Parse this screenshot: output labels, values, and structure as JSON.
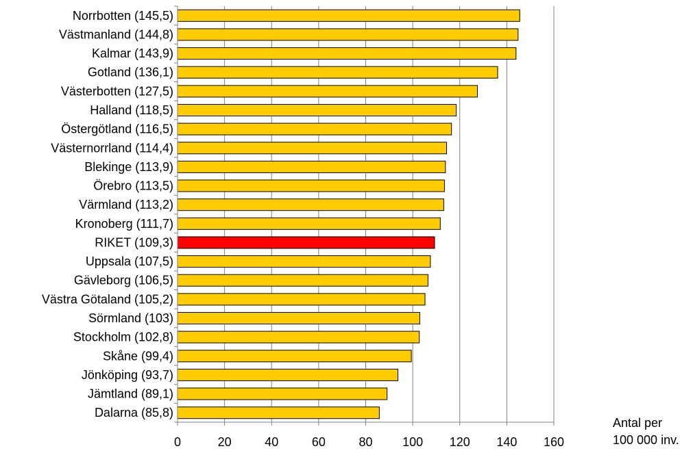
{
  "chart_data": {
    "type": "bar",
    "orientation": "horizontal",
    "categories": [
      "Norrbotten (145,5)",
      "Västmanland (144,8)",
      "Kalmar (143,9)",
      "Gotland (136,1)",
      "Västerbotten (127,5)",
      "Halland (118,5)",
      "Östergötland (116,5)",
      "Västernorrland (114,4)",
      "Blekinge (113,9)",
      "Örebro (113,5)",
      "Värmland (113,2)",
      "Kronoberg (111,7)",
      "RIKET (109,3)",
      "Uppsala (107,5)",
      "Gävleborg (106,5)",
      "Västra Götaland (105,2)",
      "Sörmland (103)",
      "Stockholm (102,8)",
      "Skåne (99,4)",
      "Jönköping (93,7)",
      "Jämtland (89,1)",
      "Dalarna (85,8)"
    ],
    "values": [
      145.5,
      144.8,
      143.9,
      136.1,
      127.5,
      118.5,
      116.5,
      114.4,
      113.9,
      113.5,
      113.2,
      111.7,
      109.3,
      107.5,
      106.5,
      105.2,
      103,
      102.8,
      99.4,
      93.7,
      89.1,
      85.8
    ],
    "highlight_category": "RIKET (109,3)",
    "xlim": [
      0,
      160
    ],
    "xticks": [
      0,
      20,
      40,
      60,
      80,
      100,
      120,
      140,
      160
    ],
    "xlabel_lines": [
      "Antal per",
      "100 000 inv."
    ],
    "grid": "vertical",
    "colors": {
      "bar": "#FFCC00",
      "highlight": "#FF0000",
      "bar_edge": "#000000",
      "gridline": "#808080",
      "axis": "#808080",
      "text": "#000000"
    }
  }
}
